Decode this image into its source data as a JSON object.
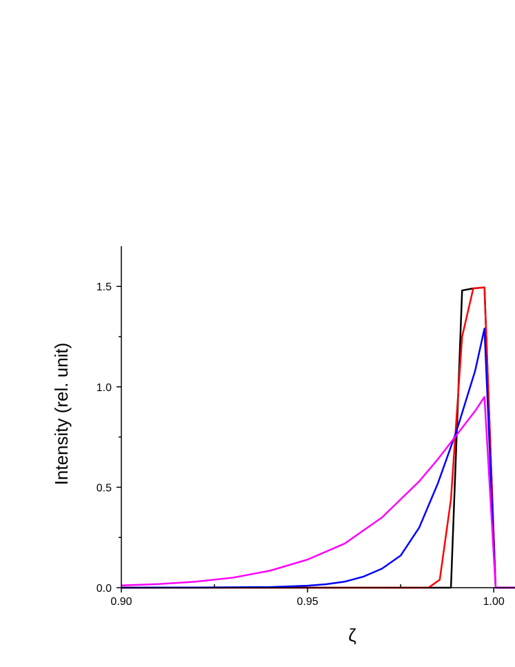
{
  "chart_data": {
    "type": "line",
    "xlabel": "ζ",
    "ylabel": "Intensity (rel. unit)",
    "xlim": [
      0.9,
      1.0057
    ],
    "ylim": [
      0,
      1.7
    ],
    "xticks": [
      {
        "value": 0.9,
        "label": "0.90"
      },
      {
        "value": 0.95,
        "label": "0.95"
      },
      {
        "value": 1.0,
        "label": "1.00"
      }
    ],
    "xminorticks": [
      0.925,
      0.975
    ],
    "yticks": [
      {
        "value": 0,
        "label": "0.0"
      },
      0.5,
      {
        "value": 1.0,
        "label": "1.0"
      },
      1.5
    ],
    "yminorticks": [
      0.25,
      0.75,
      1.25
    ],
    "series": [
      {
        "color": "#000000",
        "x": [
          0.9,
          0.9885,
          0.9915,
          0.9945,
          0.9975,
          1.0005,
          1.0057
        ],
        "values": [
          0,
          0,
          1.48,
          1.49,
          1.495,
          0,
          0
        ]
      },
      {
        "color": "#ff0000",
        "x": [
          0.9,
          0.9825,
          0.9855,
          0.9885,
          0.9915,
          0.9945,
          0.9975,
          1.0005,
          1.0057
        ],
        "values": [
          0,
          0,
          0.04,
          0.44,
          1.25,
          1.49,
          1.495,
          0,
          0
        ]
      },
      {
        "color": "#0000ff",
        "x": [
          0.9,
          0.92,
          0.94,
          0.95,
          0.955,
          0.96,
          0.965,
          0.97,
          0.975,
          0.98,
          0.985,
          0.99,
          0.995,
          0.9975,
          1.0005,
          1.0057
        ],
        "values": [
          0,
          0.001,
          0.003,
          0.01,
          0.017,
          0.03,
          0.055,
          0.095,
          0.16,
          0.3,
          0.52,
          0.78,
          1.08,
          1.29,
          0,
          0
        ]
      },
      {
        "color": "#ff00ff",
        "x": [
          0.9,
          0.91,
          0.92,
          0.93,
          0.94,
          0.95,
          0.96,
          0.97,
          0.98,
          0.985,
          0.99,
          0.995,
          0.9975,
          1.0005,
          1.0057
        ],
        "values": [
          0.011,
          0.018,
          0.03,
          0.05,
          0.085,
          0.14,
          0.22,
          0.35,
          0.53,
          0.64,
          0.76,
          0.88,
          0.95,
          0,
          0
        ]
      }
    ]
  }
}
